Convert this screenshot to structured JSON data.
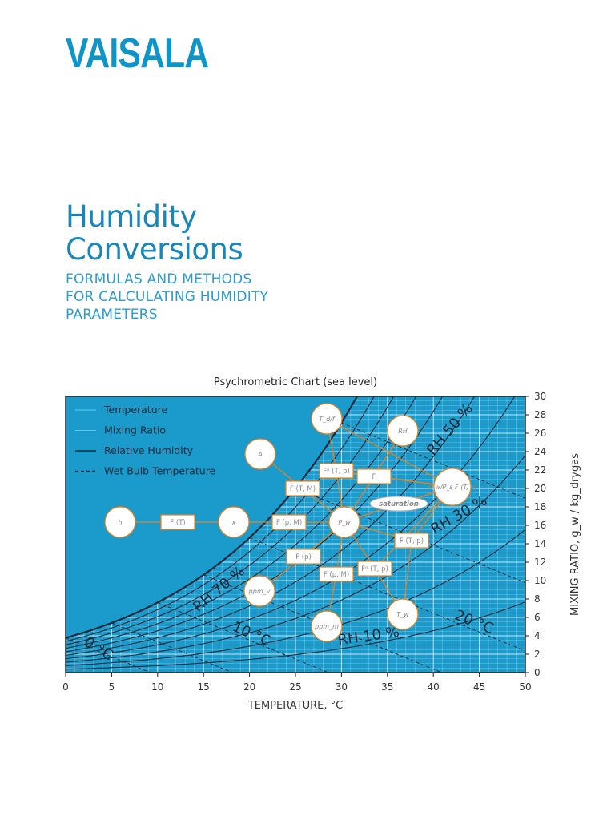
{
  "brand": {
    "logo_text": "VAISALA",
    "color": "#0f94c8"
  },
  "header": {
    "title_lines": [
      "Humidity",
      "Conversions"
    ],
    "subtitle_lines": [
      "FORMULAS AND METHODS",
      "FOR CALCULATING HUMIDITY",
      "PARAMETERS"
    ]
  },
  "chart_data": {
    "type": "line",
    "title": "Psychrometric Chart (sea level)",
    "xlabel": "TEMPERATURE, °C",
    "ylabel": "MIXING RATIO, g_w / kg_drygas",
    "xlim": [
      0,
      50
    ],
    "ylim": [
      0,
      30
    ],
    "x_ticks": [
      0,
      5,
      10,
      15,
      20,
      25,
      30,
      35,
      40,
      45,
      50
    ],
    "y_ticks": [
      0,
      2,
      4,
      6,
      8,
      10,
      12,
      14,
      16,
      18,
      20,
      22,
      24,
      26,
      28,
      30
    ],
    "grid": true,
    "legend_position": "top-left",
    "legend": [
      "Temperature",
      "Mixing Ratio",
      "Relative Humidity",
      "Wet Bulb Temperature"
    ],
    "rh_curves_percent": [
      10,
      20,
      30,
      40,
      50,
      60,
      70,
      80,
      90,
      100
    ],
    "wet_bulb_lines_c": [
      0,
      5,
      10,
      15,
      20,
      25,
      30
    ],
    "curve_labels": [
      "RH 10 %",
      "RH 30 %",
      "RH 50 %",
      "RH 70 %",
      "0 °C",
      "10 °C",
      "20 °C"
    ],
    "colors": {
      "background": "#1b9bcc",
      "grid": "#ffffff",
      "curves": "#1a2a3a",
      "diagram": "#e8821e"
    }
  },
  "diagram": {
    "nodes": {
      "h": "h",
      "FT": "F (T)",
      "x": "x",
      "FpM1": "F (p, M)",
      "A": "A",
      "FTM": "F (T, M)",
      "ppmv": "ppm_v",
      "Fp": "F (p)",
      "Tar": "T_d/f",
      "RH": "RH",
      "Fn1": "Fⁿ (T, p)",
      "F": "F",
      "PwPs": "P_w/P_s F (T, p)",
      "sat": "saturation",
      "Pw": "P_w",
      "FTp": "F (T, p)",
      "Fn2": "Fⁿ (T, p)",
      "FpM2": "F (p, M)",
      "Tw": "T_w",
      "ppmm": "ppm_m"
    },
    "edges": [
      [
        "h",
        "FT"
      ],
      [
        "FT",
        "x"
      ],
      [
        "x",
        "FpM1"
      ],
      [
        "FpM1",
        "Pw"
      ],
      [
        "A",
        "FTM"
      ],
      [
        "FTM",
        "Pw"
      ],
      [
        "Pw",
        "Fp"
      ],
      [
        "Fp",
        "ppmv"
      ],
      [
        "Pw",
        "FpM2"
      ],
      [
        "FpM2",
        "ppmm"
      ],
      [
        "Pw",
        "Fn1"
      ],
      [
        "Fn1",
        "Tar"
      ],
      [
        "Tar",
        "PwPs"
      ],
      [
        "PwPs",
        "F"
      ],
      [
        "F",
        "RH"
      ],
      [
        "F",
        "Pw"
      ],
      [
        "PwPs",
        "sat"
      ],
      [
        "sat",
        "Pw"
      ],
      [
        "PwPs",
        "FTp"
      ],
      [
        "FTp",
        "Pw"
      ],
      [
        "Pw",
        "Fn2"
      ],
      [
        "Fn2",
        "Tw"
      ],
      [
        "Tw",
        "FTp"
      ],
      [
        "PwPs",
        "Fn2"
      ],
      [
        "PwPs",
        "Fn1"
      ]
    ]
  }
}
